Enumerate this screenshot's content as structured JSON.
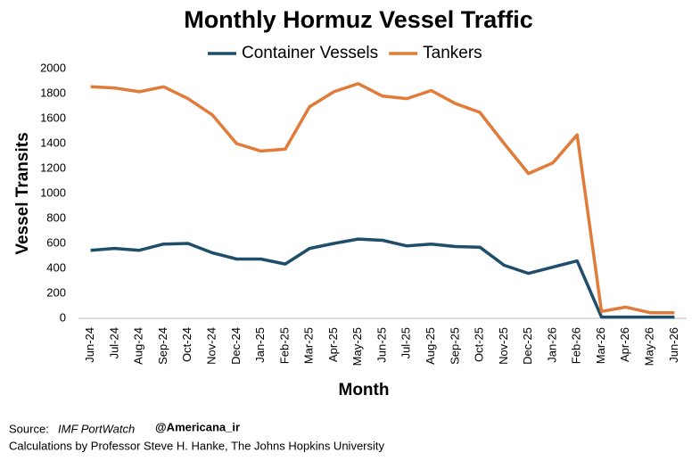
{
  "chart_data": {
    "type": "line",
    "title": "Monthly Hormuz Vessel Traffic",
    "x_label": "Month",
    "y_label": "Vessel Transits",
    "categories": [
      "Jun-24",
      "Jul-24",
      "Aug-24",
      "Sep-24",
      "Oct-24",
      "Nov-24",
      "Dec-24",
      "Jan-25",
      "Feb-25",
      "Mar-25",
      "Apr-25",
      "May-25",
      "Jun-25",
      "Jul-25",
      "Aug-25",
      "Sep-25",
      "Oct-25",
      "Nov-25",
      "Dec-25",
      "Jan-26",
      "Feb-26",
      "Mar-26",
      "Apr-26",
      "May-26",
      "Jun-26"
    ],
    "series": [
      {
        "name": "Container Vessels",
        "color": "#1f4e6b",
        "values": [
          545,
          560,
          545,
          595,
          600,
          525,
          475,
          475,
          435,
          560,
          600,
          635,
          625,
          580,
          595,
          575,
          570,
          425,
          360,
          410,
          460,
          10,
          10,
          10,
          10
        ]
      },
      {
        "name": "Tankers",
        "color": "#e07b39",
        "values": [
          1855,
          1845,
          1815,
          1855,
          1760,
          1630,
          1400,
          1340,
          1355,
          1695,
          1815,
          1880,
          1780,
          1760,
          1825,
          1720,
          1650,
          1400,
          1160,
          1245,
          1470,
          55,
          90,
          45,
          45
        ]
      }
    ],
    "ylim": [
      0,
      2000
    ],
    "yticks": [
      0,
      200,
      400,
      600,
      800,
      1000,
      1200,
      1400,
      1600,
      1800,
      2000
    ],
    "grid": false,
    "legend": "top"
  },
  "footer": {
    "source_label": "Source:",
    "source_name": "IMF PortWatch",
    "watermark": "@Americana_ir",
    "credit": "Calculations by Professor Steve H. Hanke, The Johns Hopkins University"
  }
}
